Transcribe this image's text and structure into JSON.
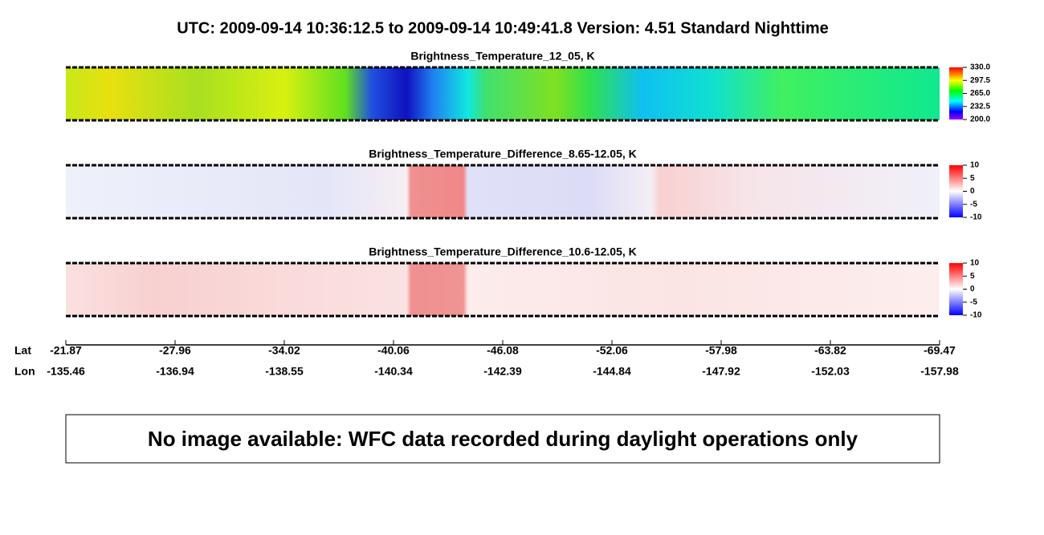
{
  "header": {
    "title": "UTC:  2009-09-14   10:36:12.5  to  2009-09-14   10:49:41.8    Version: 4.51  Standard Nighttime"
  },
  "panels": [
    {
      "title": "Brightness_Temperature_12_05, K",
      "colorbar": {
        "lim": [
          200,
          330
        ],
        "ticks": [
          {
            "value": 330,
            "label": "330.0"
          },
          {
            "value": 297.5,
            "label": "297.5"
          },
          {
            "value": 265,
            "label": "265.0"
          },
          {
            "value": 232.5,
            "label": "232.5"
          },
          {
            "value": 200,
            "label": "200.0"
          }
        ]
      }
    },
    {
      "title": "Brightness_Temperature_Difference_8.65-12.05, K",
      "colorbar": {
        "lim": [
          -10,
          10
        ],
        "ticks": [
          10,
          5,
          0,
          -5,
          -10
        ]
      }
    },
    {
      "title": "Brightness_Temperature_Difference_10.6-12.05, K",
      "colorbar": {
        "lim": [
          -10,
          10
        ],
        "ticks": [
          10,
          5,
          0,
          -5,
          -10
        ]
      }
    }
  ],
  "axis": {
    "row_labels": [
      "Lat",
      "Lon"
    ],
    "lat": [
      "-21.87",
      "-27.96",
      "-34.02",
      "-40.06",
      "-46.08",
      "-52.06",
      "-57.98",
      "-63.82",
      "-69.47"
    ],
    "lon": [
      "-135.46",
      "-136.94",
      "-138.55",
      "-140.34",
      "-142.39",
      "-144.84",
      "-147.92",
      "-152.03",
      "-157.98"
    ]
  },
  "message": "No image available: WFC data recorded during daylight operations only"
}
